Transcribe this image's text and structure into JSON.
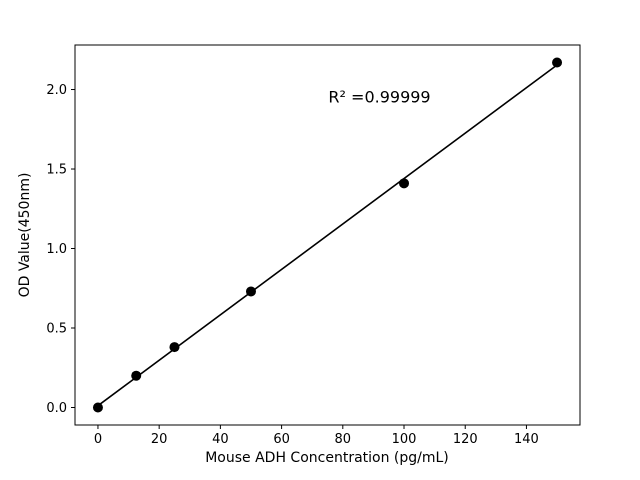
{
  "figure": {
    "background": "#ffffff"
  },
  "chart_data": {
    "type": "scatter",
    "title": "",
    "xlabel": "Mouse ADH Concentration (pg/mL)",
    "ylabel": "OD Value(450nm)",
    "annotation": {
      "text": "R² =0.99999",
      "x": 92,
      "y": 1.95
    },
    "x": [
      0,
      12.5,
      25,
      50,
      100,
      150
    ],
    "y": [
      0.0,
      0.2,
      0.38,
      0.73,
      1.41,
      2.17
    ],
    "fit_line": true,
    "xlim": [
      -7.5,
      157.5
    ],
    "ylim": [
      -0.11,
      2.28
    ],
    "xticks": [
      0,
      20,
      40,
      60,
      80,
      100,
      120,
      140
    ],
    "yticks": [
      0.0,
      0.5,
      1.0,
      1.5,
      2.0
    ],
    "marker_color": "#000000",
    "line_color": "#000000",
    "frame_color": "#000000",
    "grid": false,
    "legend": null
  }
}
